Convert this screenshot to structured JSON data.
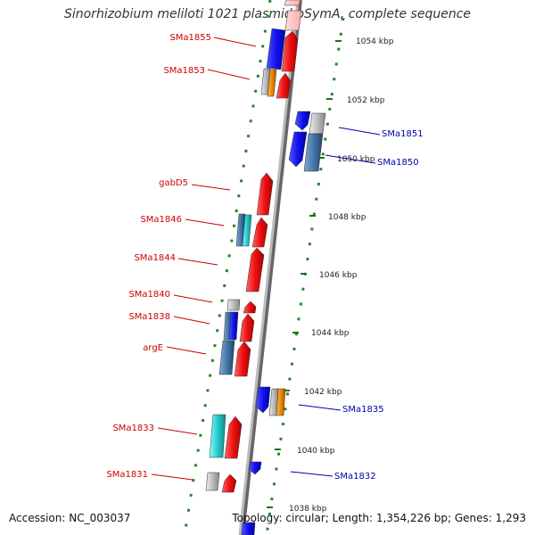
{
  "title": "Sinorhizobium meliloti 1021 plasmid pSymA, complete sequence",
  "footer": {
    "accession": "Accession: NC_003037",
    "summary": "Topology: circular; Length: 1,354,226 bp; Genes: 1,293"
  },
  "scale_labels": [
    "1054 kbp",
    "1052 kbp",
    "1050 kbp",
    "1048 kbp",
    "1046 kbp",
    "1044 kbp",
    "1042 kbp",
    "1040 kbp",
    "1038 kbp"
  ],
  "left_labels": [
    "SMa1855",
    "SMa1853",
    "gabD5",
    "SMa1846",
    "SMa1844",
    "SMa1840",
    "SMa1838",
    "argE",
    "SMa1833",
    "SMa1831"
  ],
  "right_labels": [
    "SMa1851",
    "SMa1850",
    "SMa1835",
    "SMa1832"
  ],
  "colors": {
    "forward_gene": "#ee1111",
    "reverse_gene": "#1111ee",
    "label_left": "#cc0000",
    "label_right": "#0000aa",
    "tick": "#228822",
    "backbone": "#999999",
    "grey_gene": "#bbbbbb",
    "orange_gene": "#ee8800",
    "cyan_gene": "#22cccc",
    "steel_gene": "#4477aa"
  }
}
